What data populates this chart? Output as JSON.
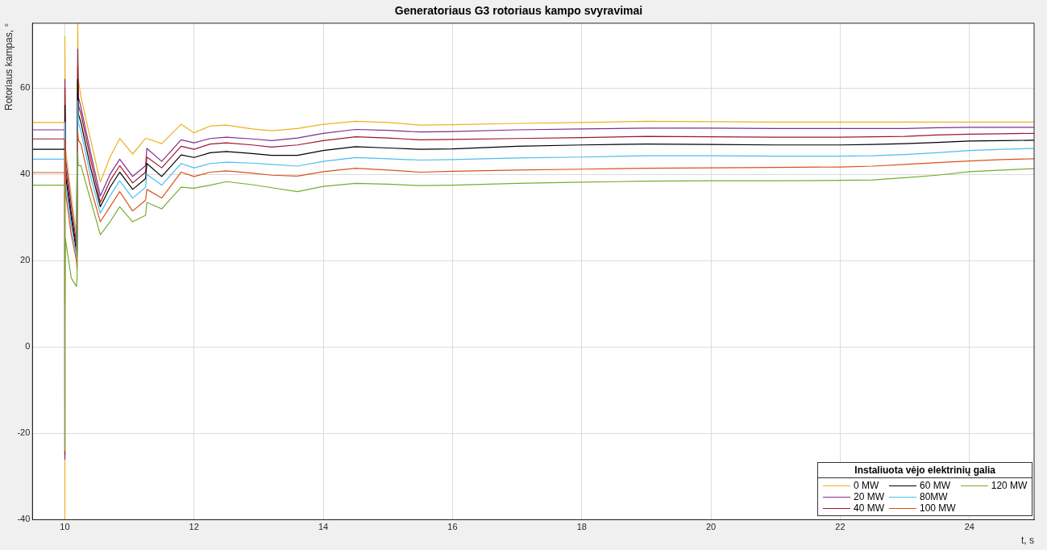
{
  "chart_data": {
    "type": "line",
    "title": "Generatoriaus G3 rotoriaus kampo svyravimai",
    "xlabel": "t, s",
    "ylabel": "Rotoriaus kampas, °",
    "legend_title": "Instaliuota vėjo elektrinių galia",
    "x": [
      9.5,
      10,
      10.001,
      10.002,
      10.01,
      10.1,
      10.18,
      10.19,
      10.2,
      10.21,
      10.25,
      10.4,
      10.55,
      10.7,
      10.85,
      11.05,
      11.25,
      11.27,
      11.5,
      11.8,
      12.0,
      12.25,
      12.5,
      12.9,
      13.2,
      13.6,
      14.0,
      14.5,
      15.0,
      15.5,
      16,
      17,
      18,
      19,
      20,
      21,
      22,
      22.5,
      23,
      23.5,
      24,
      24.5,
      25
    ],
    "series": [
      {
        "name": "0 MW",
        "color": "#edb120",
        "values": [
          52,
          52,
          -40,
          72,
          46,
          35,
          26,
          24,
          75,
          62,
          58,
          48,
          38.2,
          44,
          48.3,
          44.7,
          48.3,
          48.3,
          47.1,
          51.6,
          49.6,
          51.2,
          51.4,
          50.5,
          50.1,
          50.6,
          51.6,
          52.3,
          52.0,
          51.4,
          51.5,
          51.8,
          52.0,
          52.3,
          52.2,
          52.1,
          52.1,
          52.1,
          52.1,
          52.1,
          52.1,
          52.1,
          52.1
        ]
      },
      {
        "name": "20 MW",
        "color": "#7e2f8e",
        "values": [
          50.3,
          50.3,
          -26,
          62,
          44,
          33,
          24,
          22,
          69,
          58,
          55.5,
          45,
          35,
          40,
          43.5,
          39.5,
          42,
          46,
          43,
          48,
          47.3,
          48.3,
          48.6,
          48.2,
          47.8,
          48.4,
          49.5,
          50.4,
          50.2,
          49.8,
          49.9,
          50.3,
          50.5,
          50.7,
          50.7,
          50.6,
          50.6,
          50.6,
          50.6,
          50.8,
          50.9,
          50.9,
          50.9
        ]
      },
      {
        "name": "40 MW",
        "color": "#a2142f",
        "values": [
          48.2,
          48.2,
          -25,
          60,
          42,
          31,
          23,
          21,
          65,
          56,
          54,
          43.5,
          33.5,
          38.5,
          42,
          38,
          40.5,
          44,
          41.5,
          46.5,
          45.8,
          47,
          47.3,
          46.8,
          46.3,
          46.8,
          47.8,
          48.7,
          48.4,
          48.0,
          48.1,
          48.3,
          48.5,
          48.8,
          48.7,
          48.6,
          48.6,
          48.7,
          48.8,
          49.1,
          49.3,
          49.4,
          49.5
        ]
      },
      {
        "name": "60 MW",
        "color": "#000000",
        "values": [
          45.8,
          45.8,
          null,
          56,
          40,
          30,
          22,
          null,
          62,
          54,
          52,
          41.5,
          32.5,
          37,
          40.5,
          36.5,
          39,
          42.5,
          39.5,
          44.5,
          43.9,
          45,
          45.3,
          44.8,
          44.4,
          44.4,
          45.5,
          46.4,
          46.1,
          45.8,
          45.9,
          46.5,
          46.8,
          47,
          46.9,
          46.8,
          46.8,
          46.9,
          47.1,
          47.4,
          47.7,
          47.8,
          47.9
        ]
      },
      {
        "name": "80MW",
        "color": "#4dbeee",
        "values": [
          43.5,
          43.5,
          null,
          52,
          38,
          28,
          21,
          null,
          57,
          52,
          50,
          39.5,
          31,
          35,
          38.5,
          34.5,
          37,
          40,
          37.5,
          42.5,
          41.5,
          42.5,
          42.8,
          42.6,
          42.3,
          41.9,
          43,
          43.9,
          43.6,
          43.3,
          43.4,
          43.8,
          44,
          44.3,
          44.3,
          44.2,
          44.2,
          44.3,
          44.6,
          45,
          45.5,
          45.8,
          46
        ]
      },
      {
        "name": "100 MW",
        "color": "#d95319",
        "values": [
          40.4,
          40.4,
          10,
          48,
          36,
          26,
          20,
          18,
          50,
          48,
          47,
          37,
          29,
          32.5,
          36,
          31.5,
          34,
          36.5,
          34.5,
          40.5,
          39.5,
          40.5,
          40.8,
          40.3,
          39.8,
          39.6,
          40.6,
          41.4,
          41,
          40.5,
          40.7,
          41,
          41.2,
          41.4,
          41.5,
          41.6,
          41.7,
          41.9,
          42.3,
          42.7,
          43.1,
          43.4,
          43.6
        ]
      },
      {
        "name": "120 MW",
        "color": "#77ac30",
        "values": [
          37.5,
          37.5,
          -24,
          7,
          25,
          16,
          14,
          16,
          45,
          42,
          42,
          34,
          26,
          29,
          32.5,
          29,
          30.5,
          33.5,
          32,
          37,
          36.8,
          37.5,
          38.3,
          37.6,
          36.9,
          36,
          37.2,
          37.9,
          37.7,
          37.4,
          37.5,
          37.9,
          38.2,
          38.4,
          38.5,
          38.5,
          38.6,
          38.7,
          39.2,
          39.8,
          40.6,
          41,
          41.3
        ]
      }
    ],
    "xlim": [
      9.5,
      25
    ],
    "ylim": [
      -40,
      75
    ],
    "xticks": [
      10,
      12,
      14,
      16,
      18,
      20,
      22,
      24
    ],
    "yticks": [
      -40,
      -20,
      0,
      20,
      40,
      60
    ],
    "grid": true,
    "legend": "bottom right",
    "marker": "none",
    "line_style": "solid"
  }
}
